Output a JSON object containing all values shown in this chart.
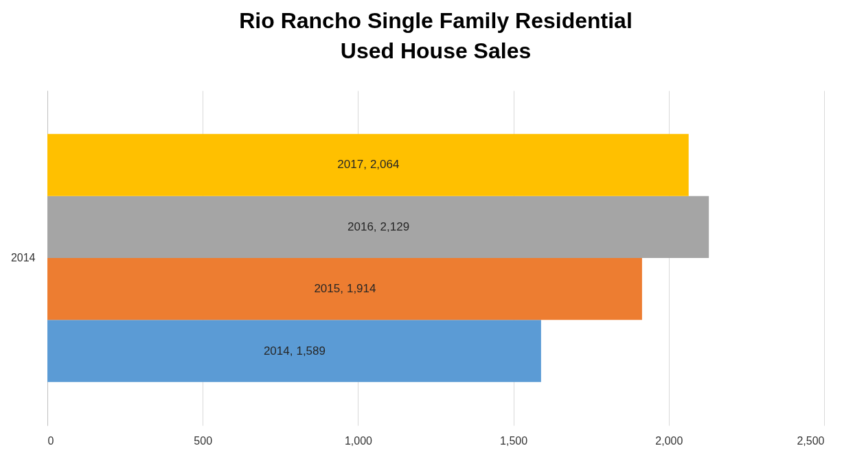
{
  "chart_data": {
    "type": "bar",
    "orientation": "horizontal",
    "title": [
      "Rio Rancho Single Family Residential",
      "Used House Sales"
    ],
    "categories": [
      "2014"
    ],
    "series": [
      {
        "name": "2014,",
        "color": "#5b9bd5",
        "values": [
          1589
        ],
        "value_labels": [
          "1,589"
        ]
      },
      {
        "name": "2015,",
        "color": "#ed7d31",
        "values": [
          1914
        ],
        "value_labels": [
          "1,914"
        ]
      },
      {
        "name": "2016,",
        "color": "#a5a5a5",
        "values": [
          2129
        ],
        "value_labels": [
          "2,129"
        ]
      },
      {
        "name": "2017,",
        "color": "#ffc000",
        "values": [
          2064
        ],
        "value_labels": [
          "2,064"
        ]
      }
    ],
    "xlim": [
      0,
      2500
    ],
    "xticks": [
      0,
      500,
      {
        "value": 1000,
        "label": "1,000"
      },
      {
        "value": 1500,
        "label": "1,500"
      },
      {
        "value": 2000,
        "label": "2,000"
      },
      {
        "value": 2500,
        "label": "2,500"
      }
    ],
    "grid": "x",
    "legend": false
  }
}
